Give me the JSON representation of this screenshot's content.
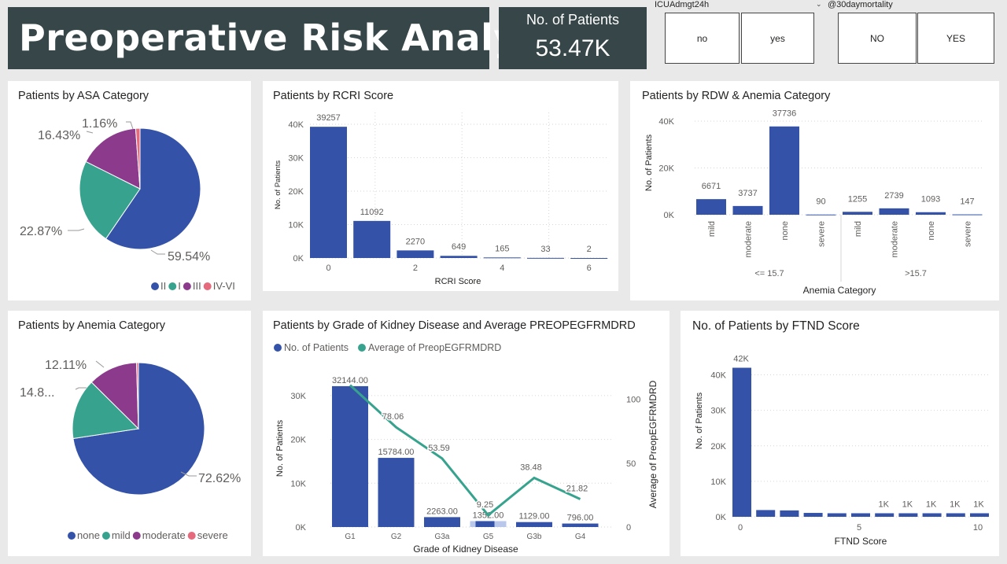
{
  "header": {
    "title": "Preoperative Risk Analysis"
  },
  "kpi": {
    "label": "No. of Patients",
    "value": "53.47K"
  },
  "slicers": [
    {
      "title": "ICUAdmgt24h",
      "options": [
        "no",
        "yes"
      ]
    },
    {
      "title": "@30daymortality",
      "options": [
        "NO",
        "YES"
      ]
    }
  ],
  "more_glyph": "...",
  "colors": {
    "blue": "#3453a8",
    "teal": "#37a38e",
    "purple": "#8b3a8c",
    "pink": "#e46a7c",
    "title_bg": "#374649",
    "band_highlight": "#b9c8ea"
  },
  "chart_data": [
    {
      "id": "asa",
      "type": "pie",
      "title": "Patients by ASA Category",
      "categories": [
        "II",
        "I",
        "III",
        "IV-VI"
      ],
      "values": [
        59.54,
        22.87,
        16.43,
        1.16
      ],
      "value_labels": [
        "59.54%",
        "22.87%",
        "16.43%",
        "1.16%"
      ],
      "legend": "bottom-right"
    },
    {
      "id": "rcri",
      "type": "bar",
      "title": "Patients by RCRI Score",
      "categories": [
        "0",
        "1",
        "2",
        "3",
        "4",
        "5",
        "6"
      ],
      "values": [
        39257,
        11092,
        2270,
        649,
        165,
        33,
        2
      ],
      "xlabel": "RCRI Score",
      "ylabel": "No. of Patients",
      "x_ticks": [
        "0",
        "2",
        "4",
        "6"
      ],
      "y_ticks": [
        "0K",
        "10K",
        "20K",
        "30K",
        "40K"
      ],
      "ylim": [
        0,
        40000
      ],
      "grid": true
    },
    {
      "id": "rdw",
      "type": "bar",
      "title": "Patients by RDW & Anemia Category",
      "groups": [
        {
          "name": "<= 15.7",
          "categories": [
            "mild",
            "moderate",
            "none",
            "severe"
          ],
          "values": [
            6671,
            3737,
            37736,
            90
          ]
        },
        {
          "name": ">15.7",
          "categories": [
            "mild",
            "moderate",
            "none",
            "severe"
          ],
          "values": [
            1255,
            2739,
            1093,
            147
          ]
        }
      ],
      "xlabel": "Anemia Category",
      "ylabel": "No. of Patients",
      "y_ticks": [
        "0K",
        "20K",
        "40K"
      ],
      "ylim": [
        0,
        40000
      ],
      "grid": true
    },
    {
      "id": "anemia",
      "type": "pie",
      "title": "Patients by Anemia Category",
      "categories": [
        "none",
        "mild",
        "moderate",
        "severe"
      ],
      "values": [
        72.62,
        14.8,
        12.11,
        0.47
      ],
      "value_labels": [
        "72.62%",
        "14.8...",
        "12.11%",
        ""
      ],
      "legend": "bottom"
    },
    {
      "id": "kidney",
      "type": "bar",
      "title": "Patients by Grade of Kidney Disease and Average PREOPEGFRMDRD",
      "categories": [
        "G1",
        "G2",
        "G3a",
        "G5",
        "G3b",
        "G4"
      ],
      "series": [
        {
          "name": "No. of Patients",
          "type": "bar",
          "axis": "left",
          "values": [
            32144,
            15784,
            2263,
            1352,
            1129,
            796
          ],
          "value_labels": [
            "32144.00",
            "15784.00",
            "2263.00",
            "1352.00",
            "1129.00",
            "796.00"
          ]
        },
        {
          "name": "Average of PreopEGFRMDRD",
          "type": "line",
          "axis": "right",
          "values": [
            111,
            78.06,
            53.59,
            9.25,
            38.48,
            21.82
          ],
          "value_labels": [
            "",
            "78.06",
            "53.59",
            "9.25",
            "38.48",
            "21.82"
          ]
        }
      ],
      "xlabel": "Grade of Kidney Disease",
      "ylabel": "No. of Patients",
      "ylabel_right": "Average of PreopEGFRMDRD",
      "y_ticks": [
        "0K",
        "10K",
        "20K",
        "30K"
      ],
      "y2_ticks": [
        "0",
        "50",
        "100"
      ],
      "ylim": [
        0,
        35000
      ],
      "y2lim": [
        0,
        120
      ],
      "legend": "top-left",
      "grid": true
    },
    {
      "id": "ftnd",
      "type": "bar",
      "title": "No. of Patients by FTND Score",
      "categories": [
        "0",
        "1",
        "2",
        "3",
        "4",
        "5",
        "6",
        "7",
        "8",
        "9",
        "10"
      ],
      "values": [
        42000,
        1900,
        1800,
        1100,
        1000,
        1000,
        1000,
        1000,
        1000,
        1000,
        1000
      ],
      "value_labels": [
        "42K",
        "",
        "",
        "",
        "",
        "",
        "1K",
        "1K",
        "1K",
        "1K",
        "1K"
      ],
      "xlabel": "FTND Score",
      "ylabel": "No. of Patients",
      "x_ticks": [
        "0",
        "5",
        "10"
      ],
      "y_ticks": [
        "0K",
        "10K",
        "20K",
        "30K",
        "40K"
      ],
      "ylim": [
        0,
        43000
      ],
      "grid": true
    }
  ]
}
